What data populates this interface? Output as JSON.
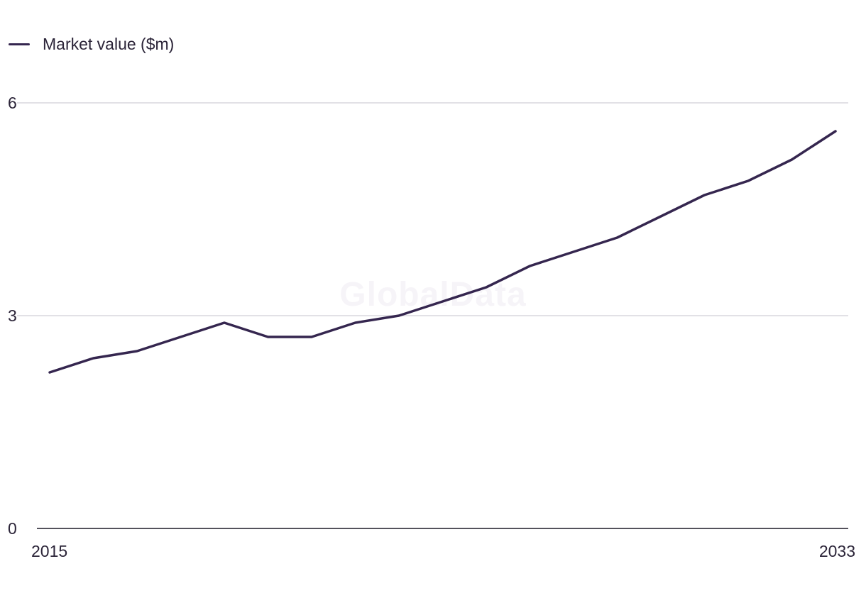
{
  "watermark": "GlobalData",
  "chart_data": {
    "type": "line",
    "x": [
      2015,
      2016,
      2017,
      2018,
      2019,
      2020,
      2021,
      2022,
      2023,
      2024,
      2025,
      2026,
      2027,
      2028,
      2029,
      2030,
      2031,
      2032,
      2033
    ],
    "series": [
      {
        "name": "Market value ($m)",
        "color": "#35264f",
        "values": [
          2.2,
          2.4,
          2.5,
          2.7,
          2.9,
          2.7,
          2.7,
          2.9,
          3.0,
          3.2,
          3.4,
          3.7,
          3.9,
          4.1,
          4.4,
          4.7,
          4.9,
          5.2,
          5.6
        ]
      }
    ],
    "ylim": [
      0,
      6
    ],
    "yticks": [
      0,
      3,
      6
    ],
    "xtick_labels": [
      "2015",
      "2033"
    ],
    "grid": true,
    "legend": "top-left"
  }
}
